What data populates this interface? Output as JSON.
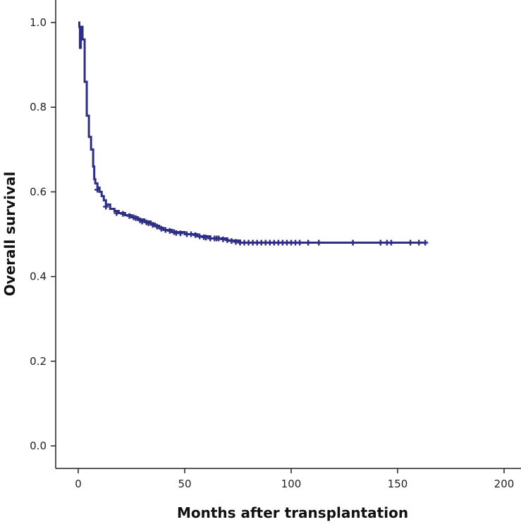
{
  "colors": {
    "series": "#2e2e86",
    "axis": "#222222",
    "background": "#ffffff"
  },
  "chart_data": {
    "type": "line",
    "title": "",
    "xlabel": "Months after transplantation",
    "ylabel": "Overall survival",
    "xlim": [
      -10,
      210
    ],
    "ylim": [
      -0.05,
      1.05
    ],
    "xticks": [
      0,
      50,
      100,
      150,
      200
    ],
    "yticks": [
      0.0,
      0.2,
      0.4,
      0.6,
      0.8,
      1.0
    ],
    "xtick_labels": [
      "0",
      "50",
      "100",
      "150",
      "200"
    ],
    "ytick_labels": [
      "0.0",
      "0.2",
      "0.4",
      "0.6",
      "0.8",
      "1.0"
    ],
    "grid": false,
    "series": [
      {
        "step": true,
        "points": [
          [
            0,
            1.0
          ],
          [
            0.5,
            0.99
          ],
          [
            0.8,
            0.94
          ],
          [
            1.2,
            0.97
          ],
          [
            1.5,
            0.99
          ],
          [
            2,
            0.96
          ],
          [
            3,
            0.86
          ],
          [
            4,
            0.78
          ],
          [
            5,
            0.73
          ],
          [
            6,
            0.7
          ],
          [
            7,
            0.66
          ],
          [
            7.5,
            0.63
          ],
          [
            8,
            0.62
          ],
          [
            9,
            0.61
          ],
          [
            10,
            0.6
          ],
          [
            11,
            0.59
          ],
          [
            12,
            0.58
          ],
          [
            13,
            0.57
          ],
          [
            15,
            0.56
          ],
          [
            17,
            0.555
          ],
          [
            19,
            0.55
          ],
          [
            22,
            0.545
          ],
          [
            25,
            0.54
          ],
          [
            28,
            0.535
          ],
          [
            31,
            0.53
          ],
          [
            34,
            0.525
          ],
          [
            36,
            0.52
          ],
          [
            38,
            0.515
          ],
          [
            40,
            0.51
          ],
          [
            44,
            0.505
          ],
          [
            50,
            0.5
          ],
          [
            56,
            0.495
          ],
          [
            62,
            0.49
          ],
          [
            70,
            0.485
          ],
          [
            76,
            0.48
          ],
          [
            163,
            0.48
          ]
        ],
        "censored": [
          [
            9,
            0.605
          ],
          [
            13,
            0.565
          ],
          [
            18,
            0.55
          ],
          [
            21,
            0.548
          ],
          [
            24,
            0.543
          ],
          [
            26,
            0.54
          ],
          [
            27,
            0.538
          ],
          [
            29,
            0.533
          ],
          [
            30,
            0.53
          ],
          [
            32,
            0.528
          ],
          [
            33,
            0.526
          ],
          [
            35,
            0.522
          ],
          [
            37,
            0.518
          ],
          [
            39,
            0.513
          ],
          [
            41,
            0.51
          ],
          [
            43,
            0.508
          ],
          [
            45,
            0.505
          ],
          [
            46,
            0.503
          ],
          [
            48,
            0.502
          ],
          [
            51,
            0.5
          ],
          [
            53,
            0.5
          ],
          [
            55,
            0.498
          ],
          [
            57,
            0.495
          ],
          [
            59,
            0.493
          ],
          [
            60,
            0.492
          ],
          [
            62,
            0.49
          ],
          [
            64,
            0.49
          ],
          [
            65,
            0.49
          ],
          [
            66,
            0.49
          ],
          [
            68,
            0.488
          ],
          [
            70,
            0.486
          ],
          [
            72,
            0.484
          ],
          [
            74,
            0.482
          ],
          [
            76,
            0.48
          ],
          [
            78,
            0.48
          ],
          [
            80,
            0.48
          ],
          [
            82,
            0.48
          ],
          [
            84,
            0.48
          ],
          [
            86,
            0.48
          ],
          [
            88,
            0.48
          ],
          [
            90,
            0.48
          ],
          [
            92,
            0.48
          ],
          [
            94,
            0.48
          ],
          [
            96,
            0.48
          ],
          [
            98,
            0.48
          ],
          [
            100,
            0.48
          ],
          [
            102,
            0.48
          ],
          [
            104,
            0.48
          ],
          [
            108,
            0.48
          ],
          [
            113,
            0.48
          ],
          [
            129,
            0.48
          ],
          [
            142,
            0.48
          ],
          [
            145,
            0.48
          ],
          [
            147,
            0.48
          ],
          [
            156,
            0.48
          ],
          [
            160,
            0.48
          ],
          [
            163,
            0.48
          ]
        ]
      }
    ]
  }
}
